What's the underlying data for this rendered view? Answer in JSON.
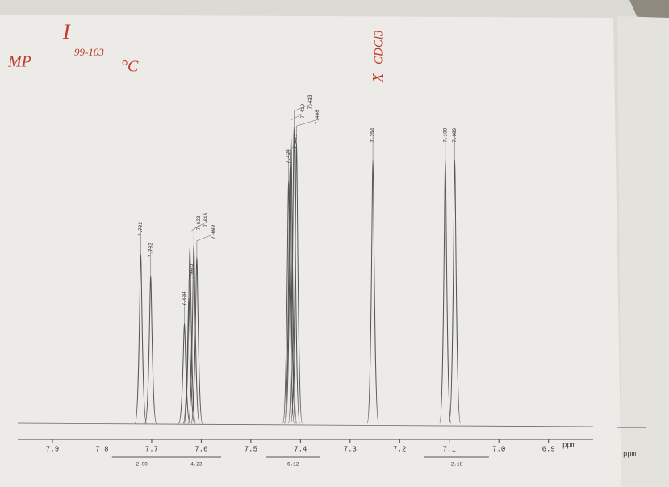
{
  "chart_data": {
    "type": "nmr",
    "x_label": "ppm",
    "xlim": [
      7.97,
      6.81
    ],
    "ylim": [
      0,
      100
    ],
    "xticks": [
      7.9,
      7.8,
      7.7,
      7.6,
      7.5,
      7.4,
      7.3,
      7.2,
      7.1,
      {
        "value": 7,
        "label": "7.0"
      },
      6.9
    ],
    "peaks": {
      "x": [
        7.722,
        7.702,
        7.634,
        7.625,
        7.623,
        7.615,
        7.609,
        7.424,
        7.421,
        7.419,
        7.413,
        7.408,
        7.254,
        7.108,
        7.089
      ],
      "values": [
        56,
        49,
        33,
        42,
        58,
        59,
        55,
        80,
        85,
        95,
        98,
        93,
        87,
        87,
        87
      ],
      "color": "#555555"
    },
    "integrals": [
      {
        "from": 7.78,
        "to": 7.66,
        "value": 2,
        "label": "2.00"
      },
      {
        "from": 7.66,
        "to": 7.56,
        "value": 4.23,
        "label": "4.23"
      },
      {
        "from": 7.47,
        "to": 7.36,
        "value": 6.12,
        "label": "6.12"
      },
      {
        "from": 7.15,
        "to": 7.02,
        "value": 2.18,
        "label": "2.18"
      }
    ],
    "annotations": [
      "I",
      "MP",
      "99-103",
      "°C",
      "X",
      "CDCl3"
    ]
  }
}
